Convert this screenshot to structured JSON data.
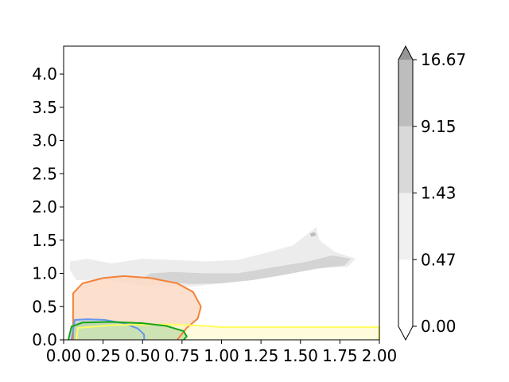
{
  "chart_data": {
    "type": "contour",
    "title": "",
    "xlabel": "",
    "ylabel": "",
    "xlim": [
      0,
      2
    ],
    "ylim": [
      0,
      4.42
    ],
    "x_ticks": [
      0.0,
      0.25,
      0.5,
      0.75,
      1.0,
      1.25,
      1.5,
      1.75,
      2.0
    ],
    "x_tick_labels": [
      "0.00",
      "0.25",
      "0.50",
      "0.75",
      "1.00",
      "1.25",
      "1.50",
      "1.75",
      "2.00"
    ],
    "y_ticks": [
      0.0,
      0.5,
      1.0,
      1.5,
      2.0,
      2.5,
      3.0,
      3.5,
      4.0
    ],
    "y_tick_labels": [
      "0.0",
      "0.5",
      "1.0",
      "1.5",
      "2.0",
      "2.5",
      "3.0",
      "3.5",
      "4.0"
    ],
    "colorbar": {
      "levels": [
        0.0,
        0.47,
        1.43,
        9.15,
        16.67
      ],
      "level_labels": [
        "0.00",
        "0.47",
        "1.43",
        "9.15",
        "16.67"
      ],
      "band_colors": [
        "#ffffff",
        "#f0f0f0",
        "#d9d9d9",
        "#bdbdbd"
      ],
      "over_color": "#969696",
      "extend": "both"
    },
    "density_regions": [
      {
        "level": 0.47,
        "color": "#ececec",
        "points": [
          [
            0.04,
            1.18
          ],
          [
            0.15,
            1.22
          ],
          [
            0.3,
            1.15
          ],
          [
            0.5,
            1.22
          ],
          [
            0.7,
            1.2
          ],
          [
            0.9,
            1.18
          ],
          [
            1.1,
            1.2
          ],
          [
            1.3,
            1.32
          ],
          [
            1.45,
            1.42
          ],
          [
            1.55,
            1.6
          ],
          [
            1.6,
            1.7
          ],
          [
            1.62,
            1.5
          ],
          [
            1.72,
            1.32
          ],
          [
            1.85,
            1.22
          ],
          [
            1.8,
            1.1
          ],
          [
            1.6,
            1.08
          ],
          [
            1.4,
            1.02
          ],
          [
            1.2,
            0.92
          ],
          [
            1.0,
            0.85
          ],
          [
            0.8,
            0.8
          ],
          [
            0.5,
            0.82
          ],
          [
            0.25,
            0.9
          ],
          [
            0.08,
            0.9
          ],
          [
            0.04,
            1.05
          ]
        ]
      },
      {
        "level": 1.43,
        "color": "#d4d4d4",
        "points": [
          [
            0.55,
            1.0
          ],
          [
            0.7,
            1.02
          ],
          [
            0.9,
            1.0
          ],
          [
            1.1,
            1.0
          ],
          [
            1.3,
            1.08
          ],
          [
            1.55,
            1.18
          ],
          [
            1.7,
            1.27
          ],
          [
            1.82,
            1.22
          ],
          [
            1.78,
            1.12
          ],
          [
            1.6,
            1.07
          ],
          [
            1.4,
            0.98
          ],
          [
            1.2,
            0.9
          ],
          [
            1.0,
            0.85
          ],
          [
            0.8,
            0.84
          ],
          [
            0.62,
            0.88
          ],
          [
            0.5,
            0.93
          ]
        ]
      },
      {
        "level": 9.15,
        "color": "#bdbdbd",
        "points": [
          [
            1.56,
            1.6
          ],
          [
            1.59,
            1.62
          ],
          [
            1.6,
            1.57
          ],
          [
            1.57,
            1.55
          ]
        ]
      }
    ],
    "series": [
      {
        "color": "#f4823a",
        "fill": "#fcd9c3",
        "fill_opacity": 0.85,
        "points": [
          [
            0.06,
            0.0
          ],
          [
            0.06,
            0.7
          ],
          [
            0.12,
            0.85
          ],
          [
            0.25,
            0.93
          ],
          [
            0.38,
            0.96
          ],
          [
            0.55,
            0.93
          ],
          [
            0.72,
            0.85
          ],
          [
            0.82,
            0.72
          ],
          [
            0.87,
            0.5
          ],
          [
            0.85,
            0.32
          ],
          [
            0.78,
            0.18
          ],
          [
            0.72,
            0.0
          ]
        ]
      },
      {
        "color": "#6495ed",
        "fill": "#b3cde8",
        "fill_opacity": 0.6,
        "points": [
          [
            0.05,
            0.0
          ],
          [
            0.07,
            0.3
          ],
          [
            0.15,
            0.31
          ],
          [
            0.26,
            0.3
          ],
          [
            0.38,
            0.25
          ],
          [
            0.47,
            0.17
          ],
          [
            0.51,
            0.08
          ],
          [
            0.51,
            0.0
          ]
        ]
      },
      {
        "color": "#ffff5c",
        "fill": "#fffbcf",
        "fill_opacity": 0.7,
        "points": [
          [
            0.08,
            0.0
          ],
          [
            0.09,
            0.18
          ],
          [
            0.3,
            0.22
          ],
          [
            0.5,
            0.23
          ],
          [
            0.7,
            0.23
          ],
          [
            0.9,
            0.21
          ],
          [
            1.0,
            0.19
          ],
          [
            2.0,
            0.19
          ],
          [
            2.0,
            0.0
          ]
        ]
      },
      {
        "color": "#14a514",
        "fill": "#b6d9a4",
        "fill_opacity": 0.65,
        "points": [
          [
            0.03,
            0.0
          ],
          [
            0.05,
            0.2
          ],
          [
            0.12,
            0.26
          ],
          [
            0.3,
            0.27
          ],
          [
            0.5,
            0.25
          ],
          [
            0.65,
            0.21
          ],
          [
            0.76,
            0.13
          ],
          [
            0.78,
            0.05
          ],
          [
            0.76,
            0.0
          ]
        ]
      }
    ]
  }
}
